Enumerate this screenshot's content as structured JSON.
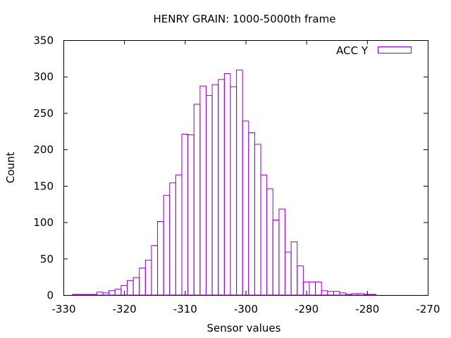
{
  "chart_data": {
    "type": "bar",
    "title": "HENRY GRAIN: 1000-5000th frame",
    "xlabel": "Sensor values",
    "ylabel": "Count",
    "xlim": [
      -330,
      -270
    ],
    "ylim": [
      0,
      350
    ],
    "xticks": [
      "-330",
      "-320",
      "-310",
      "-300",
      "-290",
      "-280",
      "-270"
    ],
    "yticks": [
      "0",
      "50",
      "100",
      "150",
      "200",
      "250",
      "300",
      "350"
    ],
    "grid": false,
    "legend_position": "top-right",
    "bin_width": 1,
    "series": [
      {
        "name": "ACC Y",
        "color": "#9400d3",
        "x": [
          -328,
          -327,
          -326,
          -325,
          -324,
          -323,
          -322,
          -321,
          -320,
          -319,
          -318,
          -317,
          -316,
          -315,
          -314,
          -313,
          -312,
          -311,
          -310,
          -309,
          -308,
          -307,
          -306,
          -305,
          -304,
          -303,
          -302,
          -301,
          -300,
          -299,
          -298,
          -297,
          -296,
          -295,
          -294,
          -293,
          -292,
          -291,
          -290,
          -289,
          -288,
          -287,
          -286,
          -285,
          -284,
          -283,
          -282,
          -281,
          -280,
          -279,
          -278
        ],
        "values": [
          1,
          1,
          1,
          1,
          4,
          3,
          6,
          8,
          13,
          20,
          24,
          37,
          48,
          68,
          101,
          137,
          154,
          165,
          221,
          220,
          262,
          287,
          274,
          289,
          296,
          304,
          286,
          309,
          239,
          223,
          207,
          165,
          146,
          103,
          118,
          59,
          73,
          40,
          18,
          18,
          18,
          6,
          5,
          5,
          3,
          1,
          2,
          2,
          1,
          1,
          0
        ]
      }
    ]
  }
}
